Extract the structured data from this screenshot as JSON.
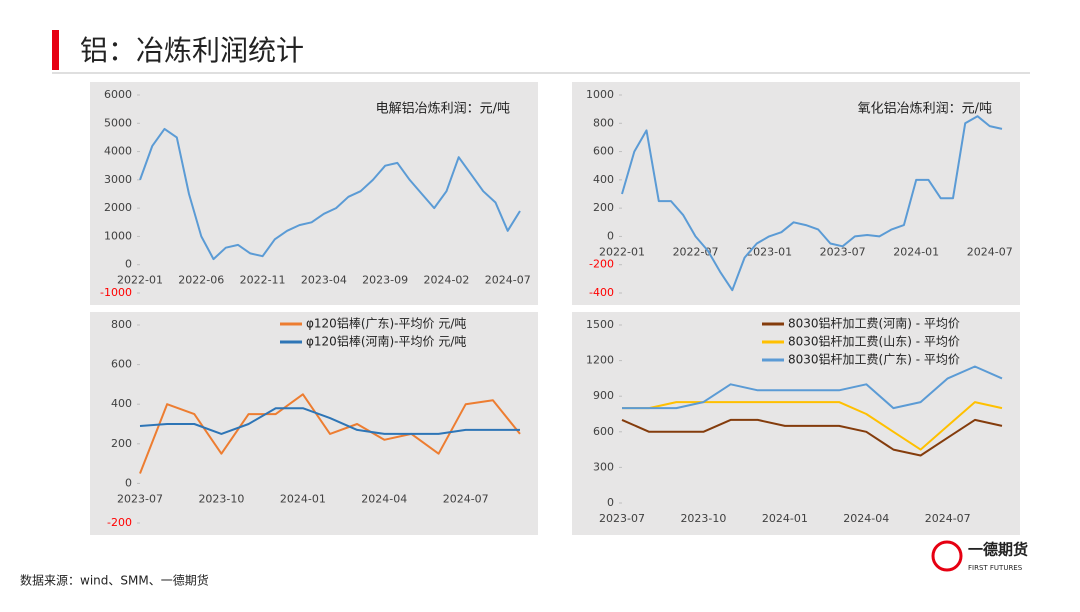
{
  "header": {
    "title": "铝：冶炼利润统计"
  },
  "footer": {
    "source": "数据来源：wind、SMM、一德期货"
  },
  "logo": {
    "name": "一德期货",
    "subtitle": "FIRST FUTURES"
  },
  "chart_data": [
    {
      "type": "line",
      "label": "电解铝冶炼利润：元/吨",
      "x": [
        "2022-01",
        "2022-02",
        "2022-03",
        "2022-04",
        "2022-05",
        "2022-06",
        "2022-07",
        "2022-08",
        "2022-09",
        "2022-10",
        "2022-11",
        "2022-12",
        "2023-01",
        "2023-02",
        "2023-03",
        "2023-04",
        "2023-05",
        "2023-06",
        "2023-07",
        "2023-08",
        "2023-09",
        "2023-10",
        "2023-11",
        "2023-12",
        "2024-01",
        "2024-02",
        "2024-03",
        "2024-04",
        "2024-05",
        "2024-06",
        "2024-07",
        "2024-08"
      ],
      "series": [
        {
          "color": "#5b9bd5",
          "values": [
            3000,
            4200,
            4800,
            4500,
            2500,
            1000,
            200,
            600,
            700,
            400,
            300,
            900,
            1200,
            1400,
            1500,
            1800,
            2000,
            2400,
            2600,
            3000,
            3500,
            3600,
            3000,
            2500,
            2000,
            2600,
            3800,
            3200,
            2600,
            2200,
            1200,
            1900
          ]
        }
      ],
      "xticks": [
        "2022-01",
        "2022-06",
        "2022-11",
        "2023-04",
        "2023-09",
        "2024-02",
        "2024-07"
      ],
      "ylim": [
        -1000,
        6000
      ],
      "yticks": [
        -1000,
        0,
        1000,
        2000,
        3000,
        4000,
        5000,
        6000
      ],
      "negative_tick_color": "#ff0000"
    },
    {
      "type": "line",
      "label": "氧化铝冶炼利润：元/吨",
      "x": [
        "2022-01",
        "2022-02",
        "2022-03",
        "2022-04",
        "2022-05",
        "2022-06",
        "2022-07",
        "2022-08",
        "2022-09",
        "2022-10",
        "2022-11",
        "2022-12",
        "2023-01",
        "2023-02",
        "2023-03",
        "2023-04",
        "2023-05",
        "2023-06",
        "2023-07",
        "2023-08",
        "2023-09",
        "2023-10",
        "2023-11",
        "2023-12",
        "2024-01",
        "2024-02",
        "2024-03",
        "2024-04",
        "2024-05",
        "2024-06",
        "2024-07",
        "2024-08"
      ],
      "series": [
        {
          "color": "#5b9bd5",
          "values": [
            300,
            600,
            750,
            250,
            250,
            150,
            0,
            -100,
            -250,
            -380,
            -150,
            -50,
            0,
            30,
            100,
            80,
            50,
            -50,
            -70,
            0,
            10,
            0,
            50,
            80,
            400,
            400,
            270,
            270,
            800,
            850,
            780,
            760
          ]
        }
      ],
      "xticks": [
        "2022-01",
        "2022-07",
        "2023-01",
        "2023-07",
        "2024-01",
        "2024-07"
      ],
      "ylim": [
        -400,
        1000
      ],
      "yticks": [
        -400,
        -200,
        0,
        200,
        400,
        600,
        800,
        1000
      ],
      "negative_tick_color": "#ff0000"
    },
    {
      "type": "line",
      "x": [
        "2023-07",
        "2023-08",
        "2023-09",
        "2023-10",
        "2023-11",
        "2023-12",
        "2024-01",
        "2024-02",
        "2024-03",
        "2024-04",
        "2024-05",
        "2024-06",
        "2024-07",
        "2024-08",
        "2024-09"
      ],
      "series": [
        {
          "name": "φ120铝棒(广东)-平均价 元/吨",
          "color": "#ed7d31",
          "values": [
            50,
            400,
            350,
            150,
            350,
            350,
            450,
            250,
            300,
            220,
            250,
            150,
            400,
            420,
            250
          ]
        },
        {
          "name": "φ120铝棒(河南)-平均价 元/吨",
          "color": "#2e75b6",
          "values": [
            290,
            300,
            300,
            250,
            300,
            380,
            380,
            330,
            270,
            250,
            250,
            250,
            270,
            270,
            270
          ]
        }
      ],
      "xticks": [
        "2023-07",
        "2023-10",
        "2024-01",
        "2024-04",
        "2024-07"
      ],
      "ylim": [
        -200,
        800
      ],
      "yticks": [
        -200,
        0,
        200,
        400,
        600,
        800
      ],
      "negative_tick_color": "#ff0000"
    },
    {
      "type": "line",
      "x": [
        "2023-07",
        "2023-08",
        "2023-09",
        "2023-10",
        "2023-11",
        "2023-12",
        "2024-01",
        "2024-02",
        "2024-03",
        "2024-04",
        "2024-05",
        "2024-06",
        "2024-07",
        "2024-08",
        "2024-09"
      ],
      "series": [
        {
          "name": "8030铝杆加工费(河南) - 平均价",
          "color": "#843c0c",
          "values": [
            700,
            600,
            600,
            600,
            700,
            700,
            650,
            650,
            650,
            600,
            450,
            400,
            550,
            700,
            650
          ]
        },
        {
          "name": "8030铝杆加工费(山东) - 平均价",
          "color": "#ffc000",
          "values": [
            800,
            800,
            850,
            850,
            850,
            850,
            850,
            850,
            850,
            750,
            600,
            450,
            650,
            850,
            800
          ]
        },
        {
          "name": "8030铝杆加工费(广东) - 平均价",
          "color": "#5b9bd5",
          "values": [
            800,
            800,
            800,
            850,
            1000,
            950,
            950,
            950,
            950,
            1000,
            800,
            850,
            1050,
            1150,
            1050
          ]
        }
      ],
      "xticks": [
        "2023-07",
        "2023-10",
        "2024-01",
        "2024-04",
        "2024-07"
      ],
      "ylim": [
        0,
        1500
      ],
      "yticks": [
        0,
        300,
        600,
        900,
        1200,
        1500
      ]
    }
  ]
}
